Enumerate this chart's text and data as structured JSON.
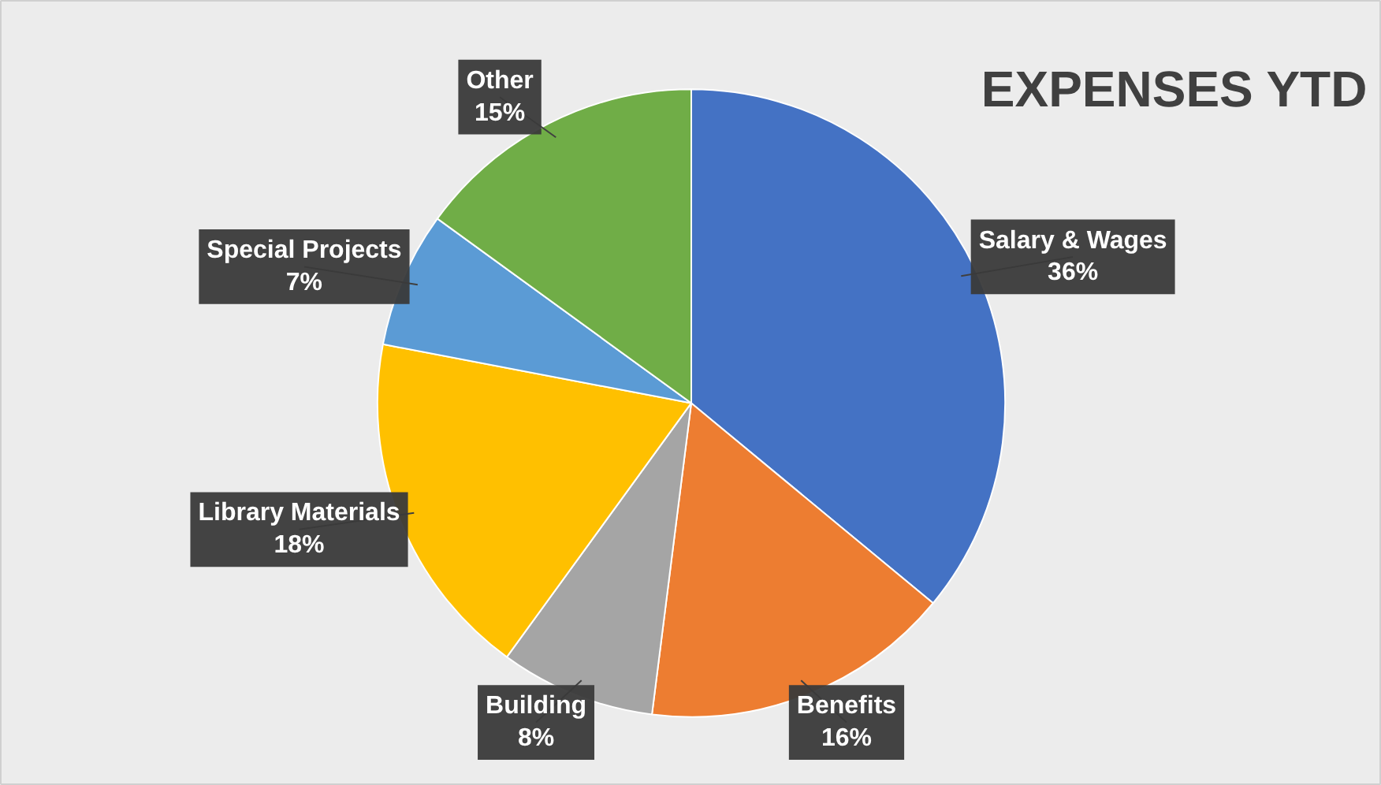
{
  "chart_data": {
    "type": "pie",
    "title": "EXPENSES YTD",
    "categories": [
      "Salary & Wages",
      "Benefits",
      "Building",
      "Library Materials",
      "Special Projects",
      "Other"
    ],
    "values": [
      36,
      16,
      8,
      18,
      7,
      15
    ],
    "colors": [
      "#4472c4",
      "#ed7d31",
      "#a5a5a5",
      "#ffc000",
      "#5b9bd5",
      "#70ad47"
    ],
    "value_labels": [
      "36%",
      "16%",
      "8%",
      "18%",
      "7%",
      "15%"
    ]
  }
}
